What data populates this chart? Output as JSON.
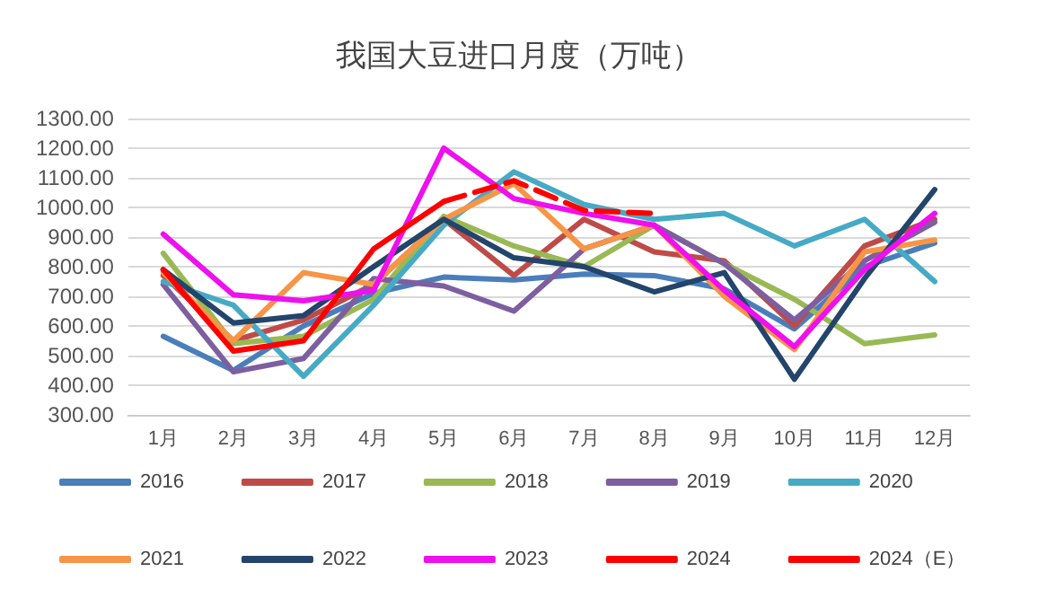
{
  "chart_data": {
    "type": "line",
    "title": "我国大豆进口月度（万吨）",
    "categories": [
      "1月",
      "2月",
      "3月",
      "4月",
      "5月",
      "6月",
      "7月",
      "8月",
      "9月",
      "10月",
      "11月",
      "12月"
    ],
    "ylim": [
      300,
      1300
    ],
    "yticks": [
      {
        "value": 300,
        "label": "300.00"
      },
      {
        "value": 400,
        "label": "400.00"
      },
      {
        "value": 500,
        "label": "500.00"
      },
      {
        "value": 600,
        "label": "600.00"
      },
      {
        "value": 700,
        "label": "700.00"
      },
      {
        "value": 800,
        "label": "800.00"
      },
      {
        "value": 900,
        "label": "900.00"
      },
      {
        "value": 1000,
        "label": "1000.00"
      },
      {
        "value": 1100,
        "label": "1100.00"
      },
      {
        "value": 1200,
        "label": "1200.00"
      },
      {
        "value": 1300,
        "label": "1300.00"
      }
    ],
    "grid": "y",
    "legend": "bottom",
    "marker": "none",
    "series": [
      {
        "name": "2016",
        "color": "#4a7ebb",
        "values": [
          565,
          450,
          600,
          710,
          765,
          755,
          775,
          770,
          725,
          590,
          800,
          880
        ]
      },
      {
        "name": "2017",
        "color": "#be4b48",
        "values": [
          770,
          550,
          620,
          740,
          960,
          770,
          960,
          850,
          820,
          600,
          870,
          960
        ]
      },
      {
        "name": "2018",
        "color": "#98b954",
        "values": [
          845,
          540,
          565,
          690,
          970,
          870,
          800,
          940,
          810,
          690,
          540,
          570
        ]
      },
      {
        "name": "2019",
        "color": "#7d5fa0",
        "values": [
          740,
          445,
          490,
          760,
          735,
          650,
          860,
          940,
          810,
          620,
          820,
          950
        ]
      },
      {
        "name": "2020",
        "color": "#46aac5",
        "values": [
          750,
          670,
          430,
          670,
          940,
          1120,
          1010,
          960,
          980,
          870,
          960,
          750
        ]
      },
      {
        "name": "2021",
        "color": "#f69546",
        "values": [
          780,
          550,
          780,
          740,
          960,
          1080,
          860,
          940,
          700,
          520,
          850,
          890
        ]
      },
      {
        "name": "2022",
        "color": "#23446b",
        "values": [
          790,
          610,
          635,
          800,
          960,
          830,
          800,
          715,
          780,
          420,
          760,
          1060
        ]
      },
      {
        "name": "2023",
        "color": "#ee10ee",
        "values": [
          910,
          705,
          685,
          720,
          1200,
          1030,
          980,
          940,
          720,
          530,
          790,
          980
        ]
      },
      {
        "name": "2024",
        "color": "#ff0000",
        "values": [
          790,
          515,
          550,
          860,
          1020,
          null,
          null,
          null,
          null,
          null,
          null,
          null
        ]
      },
      {
        "name": "2024（E）",
        "color": "#ff0000",
        "line_style": "dashed",
        "values": [
          null,
          null,
          null,
          null,
          1020,
          1090,
          990,
          980,
          null,
          null,
          null,
          null
        ]
      }
    ]
  }
}
